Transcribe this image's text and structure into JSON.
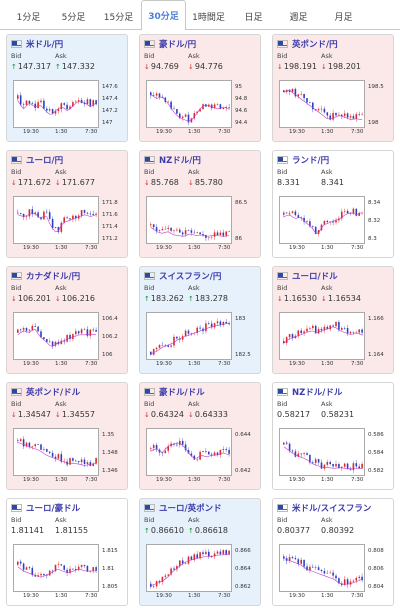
{
  "tabs": [
    {
      "label": "1分足"
    },
    {
      "label": "5分足"
    },
    {
      "label": "15分足"
    },
    {
      "label": "30分足",
      "active": true
    },
    {
      "label": "1時間足"
    },
    {
      "label": "日足"
    },
    {
      "label": "週足"
    },
    {
      "label": "月足"
    }
  ],
  "labels": {
    "bid": "Bid",
    "ask": "Ask"
  },
  "x_ticks": [
    "19:30",
    "1:30",
    "7:30"
  ],
  "colors": {
    "up": "#1a8d3a",
    "down": "#d03030",
    "accent": "#4b7fd6",
    "pair_name": "#3d3daa"
  },
  "cards": [
    {
      "pair": "米ドル/円",
      "bg": "blue",
      "dir": "up",
      "bid": "147.317",
      "ask": "147.332",
      "y_ticks": [
        "147.6",
        "147.4",
        "147.2",
        "147"
      ],
      "trend": [
        0.35,
        0.55,
        0.4,
        0.5,
        0.45,
        0.6,
        0.7,
        0.55,
        0.5,
        0.6,
        0.45,
        0.35,
        0.4,
        0.5,
        0.4
      ]
    },
    {
      "pair": "豪ドル/円",
      "bg": "pink",
      "dir": "down",
      "bid": "94.769",
      "ask": "94.776",
      "y_ticks": [
        "95",
        "94.8",
        "94.6",
        "94.4"
      ],
      "trend": [
        0.2,
        0.3,
        0.25,
        0.4,
        0.6,
        0.75,
        0.8,
        0.85,
        0.7,
        0.5,
        0.45,
        0.5,
        0.55,
        0.5,
        0.55
      ]
    },
    {
      "pair": "英ポンド/円",
      "bg": "pink",
      "dir": "down",
      "bid": "198.191",
      "ask": "198.201",
      "y_ticks": [
        "198.5",
        "198"
      ],
      "trend": [
        0.15,
        0.1,
        0.2,
        0.3,
        0.4,
        0.5,
        0.6,
        0.7,
        0.8,
        0.75,
        0.7,
        0.75,
        0.8,
        0.78,
        0.8
      ]
    },
    {
      "pair": "ユーロ/円",
      "bg": "pink",
      "dir": "down",
      "bid": "171.672",
      "ask": "171.677",
      "y_ticks": [
        "171.8",
        "171.6",
        "171.4",
        "171.2"
      ],
      "trend": [
        0.3,
        0.35,
        0.3,
        0.25,
        0.4,
        0.3,
        0.6,
        0.75,
        0.5,
        0.45,
        0.4,
        0.35,
        0.3,
        0.35,
        0.3
      ]
    },
    {
      "pair": "NZドル/円",
      "bg": "pink",
      "dir": "down",
      "bid": "85.768",
      "ask": "85.780",
      "y_ticks": [
        "86.5",
        "86"
      ],
      "trend": [
        0.6,
        0.7,
        0.75,
        0.7,
        0.78,
        0.8,
        0.82,
        0.75,
        0.8,
        0.78,
        0.82,
        0.8,
        0.8,
        0.82,
        0.8
      ]
    },
    {
      "pair": "ランド/円",
      "bg": "white",
      "dir": "none",
      "bid": "8.331",
      "ask": "8.341",
      "y_ticks": [
        "8.34",
        "8.32",
        "8.3"
      ],
      "trend": [
        0.35,
        0.3,
        0.4,
        0.35,
        0.5,
        0.6,
        0.8,
        0.55,
        0.5,
        0.45,
        0.4,
        0.3,
        0.25,
        0.3,
        0.25
      ]
    },
    {
      "pair": "カナダドル/円",
      "bg": "pink",
      "dir": "down",
      "bid": "106.201",
      "ask": "106.216",
      "y_ticks": [
        "106.4",
        "106.2",
        "106"
      ],
      "trend": [
        0.4,
        0.3,
        0.35,
        0.25,
        0.45,
        0.55,
        0.7,
        0.6,
        0.55,
        0.5,
        0.45,
        0.4,
        0.4,
        0.38,
        0.4
      ]
    },
    {
      "pair": "スイスフラン/円",
      "bg": "blue",
      "dir": "up",
      "bid": "183.262",
      "ask": "183.278",
      "y_ticks": [
        "183",
        "182.5"
      ],
      "trend": [
        0.85,
        0.8,
        0.7,
        0.65,
        0.6,
        0.5,
        0.45,
        0.4,
        0.35,
        0.3,
        0.25,
        0.2,
        0.18,
        0.15,
        0.12
      ]
    },
    {
      "pair": "ユーロ/ドル",
      "bg": "pink",
      "dir": "down",
      "bid": "1.16530",
      "ask": "1.16534",
      "y_ticks": [
        "1.166",
        "1.164"
      ],
      "trend": [
        0.6,
        0.5,
        0.45,
        0.4,
        0.35,
        0.3,
        0.35,
        0.3,
        0.25,
        0.2,
        0.3,
        0.35,
        0.4,
        0.35,
        0.4
      ]
    },
    {
      "pair": "英ポンド/ドル",
      "bg": "pink",
      "dir": "down",
      "bid": "1.34547",
      "ask": "1.34557",
      "y_ticks": [
        "1.35",
        "1.348",
        "1.346"
      ],
      "trend": [
        0.2,
        0.25,
        0.3,
        0.35,
        0.4,
        0.5,
        0.55,
        0.6,
        0.65,
        0.7,
        0.7,
        0.72,
        0.75,
        0.72,
        0.7
      ]
    },
    {
      "pair": "豪ドル/ドル",
      "bg": "pink",
      "dir": "down",
      "bid": "0.64324",
      "ask": "0.64333",
      "y_ticks": [
        "0.644",
        "0.642"
      ],
      "trend": [
        0.4,
        0.35,
        0.45,
        0.3,
        0.25,
        0.2,
        0.3,
        0.5,
        0.6,
        0.5,
        0.55,
        0.5,
        0.5,
        0.45,
        0.5
      ]
    },
    {
      "pair": "NZドル/ドル",
      "bg": "white",
      "dir": "none",
      "bid": "0.58217",
      "ask": "0.58231",
      "y_ticks": [
        "0.586",
        "0.584",
        "0.582"
      ],
      "trend": [
        0.3,
        0.4,
        0.5,
        0.55,
        0.6,
        0.7,
        0.75,
        0.8,
        0.8,
        0.82,
        0.8,
        0.82,
        0.83,
        0.82,
        0.82
      ]
    },
    {
      "pair": "ユーロ/豪ドル",
      "bg": "white",
      "dir": "none",
      "bid": "1.81141",
      "ask": "1.81155",
      "y_ticks": [
        "1.815",
        "1.81",
        "1.805"
      ],
      "trend": [
        0.4,
        0.5,
        0.55,
        0.6,
        0.65,
        0.6,
        0.55,
        0.45,
        0.5,
        0.55,
        0.5,
        0.45,
        0.5,
        0.5,
        0.5
      ]
    },
    {
      "pair": "ユーロ/英ポンド",
      "bg": "blue",
      "dir": "up",
      "bid": "0.86610",
      "ask": "0.86618",
      "y_ticks": [
        "0.866",
        "0.864",
        "0.862"
      ],
      "trend": [
        0.85,
        0.8,
        0.75,
        0.65,
        0.5,
        0.4,
        0.3,
        0.25,
        0.2,
        0.18,
        0.15,
        0.15,
        0.12,
        0.12,
        0.1
      ]
    },
    {
      "pair": "米ドル/スイスフラン",
      "bg": "white",
      "dir": "none",
      "bid": "0.80377",
      "ask": "0.80392",
      "y_ticks": [
        "0.808",
        "0.806",
        "0.804"
      ],
      "trend": [
        0.2,
        0.25,
        0.3,
        0.35,
        0.45,
        0.5,
        0.55,
        0.6,
        0.65,
        0.7,
        0.8,
        0.82,
        0.8,
        0.75,
        0.7
      ]
    }
  ]
}
